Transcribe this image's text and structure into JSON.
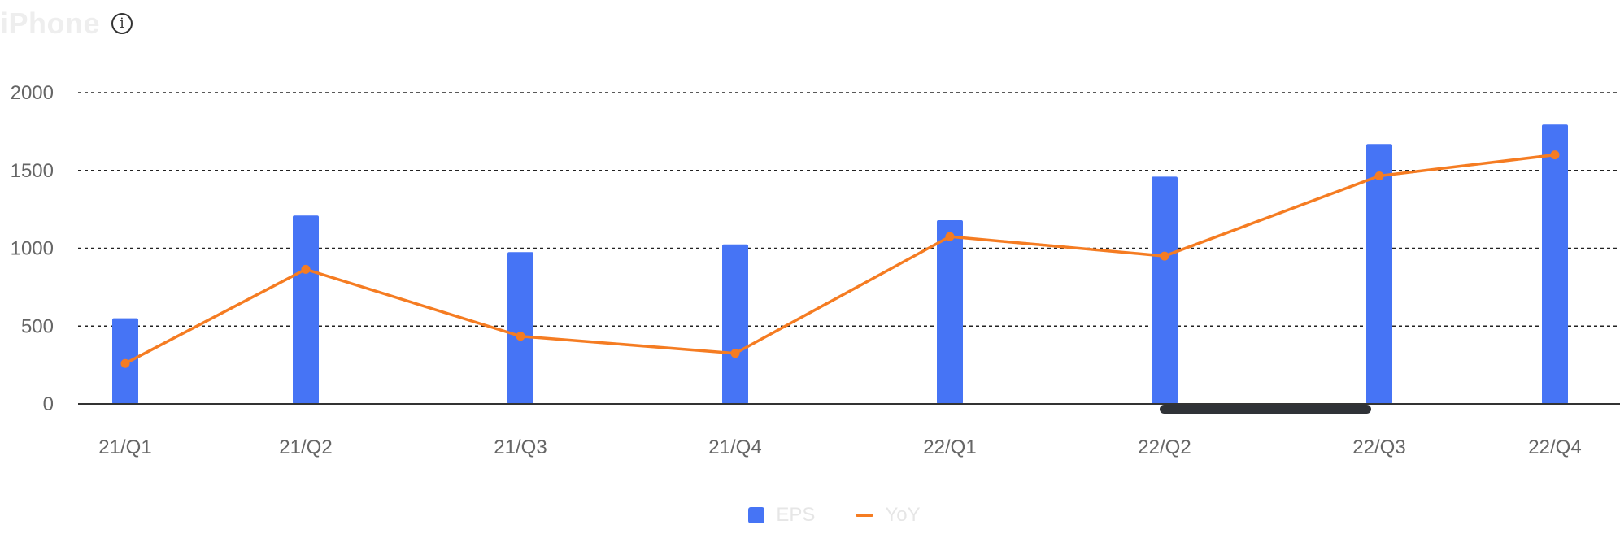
{
  "header": {
    "title": "iPhone",
    "info_icon": "info-icon"
  },
  "colors": {
    "bar": "#4674f5",
    "line": "#f57c22",
    "grid": "#222222",
    "axis": "#333333",
    "scrollbar": "#2f3237"
  },
  "chart_data": {
    "type": "bar",
    "categories": [
      "21/Q1",
      "21/Q2",
      "21/Q3",
      "21/Q4",
      "22/Q1",
      "22/Q2",
      "22/Q3",
      "22/Q4"
    ],
    "series": [
      {
        "name": "EPS",
        "type": "bar",
        "values": [
          550,
          1210,
          975,
          1025,
          1180,
          1460,
          1670,
          1795
        ]
      },
      {
        "name": "YoY",
        "type": "line",
        "values": [
          260,
          865,
          435,
          325,
          1075,
          950,
          1465,
          1600
        ]
      }
    ],
    "yticks": [
      0,
      500,
      1000,
      1500,
      2000
    ],
    "ylim": [
      0,
      2000
    ],
    "grid": true,
    "legend": "bottom-center"
  }
}
